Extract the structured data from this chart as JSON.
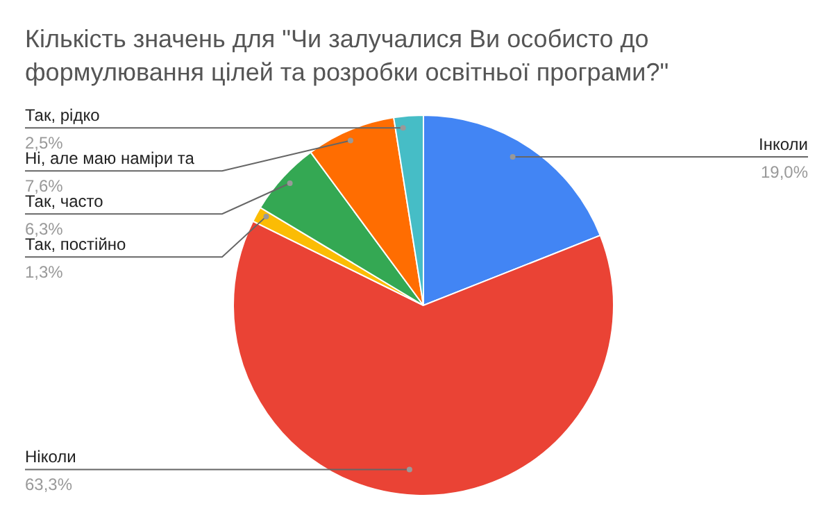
{
  "chart_data": {
    "type": "pie",
    "title": "Кількість значень для \"Чи залучалися Ви особисто до формулювання цілей та розробки освітньої програми?\"",
    "categories": [
      "Інколи",
      "Ніколи",
      "Так, постійно",
      "Так, часто",
      "Ні, але маю наміри та",
      "Так, рідко"
    ],
    "values": [
      19.0,
      63.3,
      1.3,
      6.3,
      7.6,
      2.5
    ],
    "value_labels": [
      "19,0%",
      "63,3%",
      "1,3%",
      "6,3%",
      "7,6%",
      "2,5%"
    ],
    "colors": [
      "#4285f4",
      "#ea4335",
      "#fbbc04",
      "#34a853",
      "#ff6d01",
      "#46bdc6"
    ]
  }
}
